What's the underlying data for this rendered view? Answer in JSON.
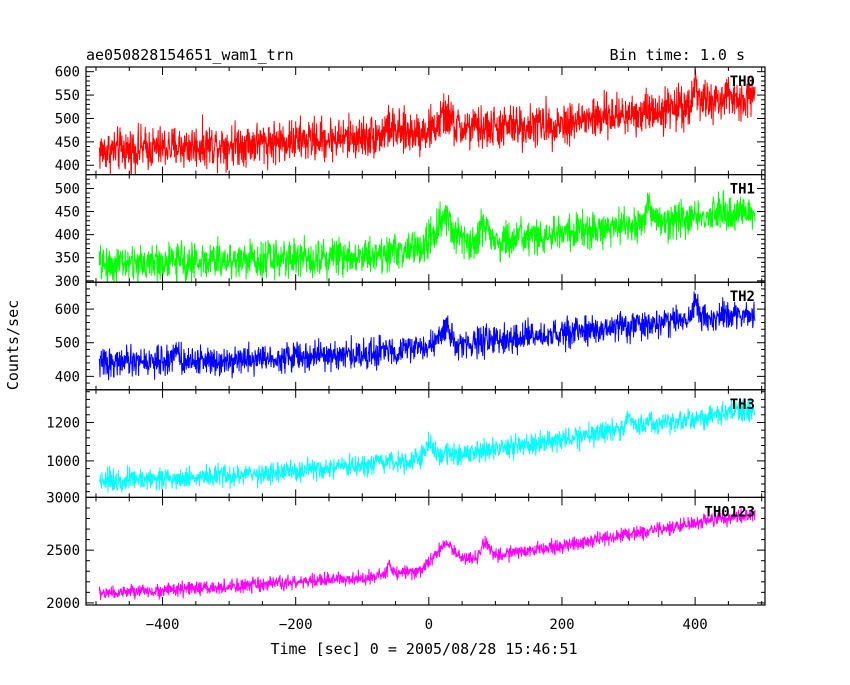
{
  "header": {
    "left_title": "ae050828154651_wam1_trn",
    "right_title": "Bin time: 1.0 s"
  },
  "chart_data": {
    "type": "line",
    "title": "ae050828154651_wam1_trn",
    "bin_time": "Bin time: 1.0 s",
    "xlabel": "Time [sec] 0 = 2005/08/28 15:46:51",
    "ylabel": "Counts/sec",
    "xlim": [
      -515,
      505
    ],
    "x_ticks": [
      -400,
      -200,
      0,
      200,
      400
    ],
    "x_tick_labels": [
      "−400",
      "−200",
      "0",
      "200",
      "400"
    ],
    "x_range_data": [
      -495,
      490
    ],
    "grid": false,
    "legend": "none",
    "panels": [
      {
        "name": "TH0",
        "color": "#ff0000",
        "ylim": [
          380,
          610
        ],
        "y_ticks": [
          400,
          450,
          500,
          550,
          600
        ],
        "y_tick_labels": [
          "400",
          "450",
          "500",
          "550",
          "600"
        ],
        "trend": [
          [
            -495,
            430
          ],
          [
            -300,
            445
          ],
          [
            -100,
            460
          ],
          [
            0,
            475
          ],
          [
            100,
            480
          ],
          [
            200,
            490
          ],
          [
            300,
            510
          ],
          [
            400,
            530
          ],
          [
            490,
            550
          ]
        ],
        "noise_amp": 48,
        "features": [
          [
            25,
            30,
            12
          ],
          [
            -60,
            15,
            8
          ],
          [
            400,
            40,
            6
          ]
        ]
      },
      {
        "name": "TH1",
        "color": "#00ff00",
        "ylim": [
          297,
          530
        ],
        "y_ticks": [
          300,
          350,
          400,
          450,
          500
        ],
        "y_tick_labels": [
          "300",
          "350",
          "400",
          "450",
          "500"
        ],
        "trend": [
          [
            -495,
            335
          ],
          [
            -300,
            345
          ],
          [
            -100,
            355
          ],
          [
            -10,
            370
          ],
          [
            0,
            390
          ],
          [
            100,
            385
          ],
          [
            200,
            400
          ],
          [
            300,
            420
          ],
          [
            400,
            440
          ],
          [
            490,
            450
          ]
        ],
        "noise_amp": 42,
        "features": [
          [
            25,
            45,
            14
          ],
          [
            85,
            35,
            8
          ],
          [
            330,
            25,
            10
          ]
        ]
      },
      {
        "name": "TH2",
        "color": "#0000ff",
        "ylim": [
          360,
          680
        ],
        "y_ticks": [
          400,
          500,
          600
        ],
        "y_tick_labels": [
          "400",
          "500",
          "600"
        ],
        "trend": [
          [
            -495,
            440
          ],
          [
            -300,
            450
          ],
          [
            -100,
            465
          ],
          [
            0,
            490
          ],
          [
            100,
            505
          ],
          [
            200,
            525
          ],
          [
            300,
            550
          ],
          [
            400,
            570
          ],
          [
            490,
            585
          ]
        ],
        "noise_amp": 45,
        "features": [
          [
            25,
            40,
            12
          ],
          [
            -380,
            40,
            5
          ],
          [
            400,
            60,
            5
          ]
        ]
      },
      {
        "name": "TH3",
        "color": "#00ffff",
        "ylim": [
          810,
          1370
        ],
        "y_ticks": [
          1000,
          1200
        ],
        "y_tick_labels": [
          "1000",
          "1200"
        ],
        "trend": [
          [
            -495,
            900
          ],
          [
            -300,
            920
          ],
          [
            -100,
            970
          ],
          [
            0,
            1020
          ],
          [
            100,
            1060
          ],
          [
            200,
            1110
          ],
          [
            300,
            1170
          ],
          [
            400,
            1220
          ],
          [
            490,
            1270
          ]
        ],
        "noise_amp": 60,
        "features": [
          [
            0,
            60,
            10
          ],
          [
            300,
            60,
            8
          ]
        ]
      },
      {
        "name": "TH0123",
        "color": "#ff00ff",
        "ylim": [
          1980,
          3000
        ],
        "y_ticks": [
          2000,
          2500,
          3000
        ],
        "y_tick_labels": [
          "2000",
          "2500",
          "3000"
        ],
        "trend": [
          [
            -495,
            2090
          ],
          [
            -300,
            2150
          ],
          [
            -100,
            2240
          ],
          [
            -10,
            2310
          ],
          [
            0,
            2390
          ],
          [
            100,
            2450
          ],
          [
            200,
            2540
          ],
          [
            300,
            2650
          ],
          [
            400,
            2760
          ],
          [
            490,
            2840
          ]
        ],
        "noise_amp": 70,
        "features": [
          [
            25,
            160,
            14
          ],
          [
            85,
            130,
            8
          ],
          [
            -60,
            70,
            6
          ]
        ]
      }
    ]
  }
}
